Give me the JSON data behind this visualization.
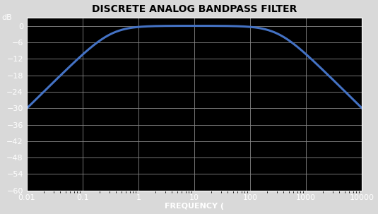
{
  "title": "DISCRETE ANALOG BANDPASS FILTER",
  "xlabel": "FREQUENCY (",
  "ylabel": "dB",
  "xlim": [
    0.01,
    10000
  ],
  "ylim": [
    -60,
    3
  ],
  "yticks": [
    0,
    -6,
    -12,
    -18,
    -24,
    -30,
    -36,
    -42,
    -48,
    -54,
    -60
  ],
  "xticks": [
    0.01,
    0.1,
    1,
    10,
    100,
    1000,
    10000
  ],
  "xtick_labels": [
    "0.01",
    "0.1",
    "1",
    "10",
    "100",
    "1000",
    "10000"
  ],
  "line_color": "#4472c4",
  "line_width": 2.2,
  "background_color": "#000000",
  "plot_bg_color": "#000000",
  "grid_color": "#888888",
  "text_color": "#ffffff",
  "title_color": "#000000",
  "title_bg": "#d9d9d9",
  "title_fontsize": 10,
  "label_fontsize": 8,
  "tick_fontsize": 8,
  "f1": 0.32,
  "f2": 320.0
}
